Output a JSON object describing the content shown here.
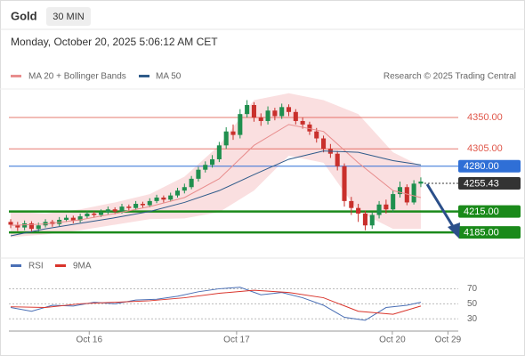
{
  "chart_data": [
    {
      "type": "candlestick",
      "title": "Gold",
      "timeframe": "30 MIN",
      "subtitle": "Monday, October 20, 2025 5:06:12 AM CET",
      "source": "Research © 2025 Trading Central",
      "open": [
        4200,
        4196,
        4192,
        4198,
        4190,
        4195,
        4200,
        4197,
        4203,
        4206,
        4202,
        4208,
        4212,
        4210,
        4214,
        4218,
        4215,
        4222,
        4220,
        4226,
        4224,
        4230,
        4235,
        4232,
        4238,
        4245,
        4250,
        4262,
        4275,
        4282,
        4290,
        4310,
        4330,
        4325,
        4355,
        4368,
        4350,
        4345,
        4360,
        4352,
        4365,
        4358,
        4345,
        4340,
        4330,
        4320,
        4305,
        4298,
        4280,
        4230,
        4220,
        4212,
        4195,
        4210,
        4225,
        4218,
        4240,
        4250,
        4228,
        4255
      ],
      "high": [
        4204,
        4200,
        4202,
        4201,
        4199,
        4204,
        4203,
        4207,
        4210,
        4209,
        4212,
        4216,
        4215,
        4218,
        4222,
        4221,
        4226,
        4225,
        4230,
        4229,
        4234,
        4239,
        4238,
        4242,
        4249,
        4255,
        4266,
        4279,
        4287,
        4296,
        4315,
        4336,
        4340,
        4362,
        4375,
        4372,
        4356,
        4366,
        4364,
        4370,
        4369,
        4362,
        4350,
        4344,
        4335,
        4324,
        4312,
        4302,
        4284,
        4236,
        4226,
        4216,
        4214,
        4230,
        4232,
        4245,
        4258,
        4254,
        4260,
        4264
      ],
      "low": [
        4191,
        4187,
        4188,
        4185,
        4186,
        4192,
        4193,
        4194,
        4200,
        4198,
        4199,
        4205,
        4206,
        4207,
        4211,
        4211,
        4212,
        4216,
        4217,
        4220,
        4221,
        4227,
        4228,
        4229,
        4235,
        4241,
        4247,
        4258,
        4271,
        4278,
        4286,
        4305,
        4318,
        4320,
        4350,
        4344,
        4338,
        4340,
        4346,
        4348,
        4352,
        4340,
        4334,
        4325,
        4314,
        4300,
        4292,
        4274,
        4222,
        4210,
        4200,
        4188,
        4190,
        4205,
        4212,
        4214,
        4235,
        4224,
        4225,
        4250
      ],
      "close": [
        4196,
        4192,
        4198,
        4190,
        4195,
        4200,
        4197,
        4203,
        4206,
        4202,
        4208,
        4212,
        4210,
        4214,
        4218,
        4215,
        4222,
        4220,
        4226,
        4224,
        4230,
        4235,
        4232,
        4238,
        4245,
        4250,
        4262,
        4275,
        4282,
        4290,
        4310,
        4330,
        4325,
        4355,
        4368,
        4350,
        4345,
        4360,
        4352,
        4365,
        4358,
        4345,
        4340,
        4330,
        4320,
        4305,
        4298,
        4280,
        4230,
        4220,
        4212,
        4195,
        4210,
        4225,
        4218,
        4240,
        4250,
        4228,
        4255,
        4258
      ],
      "up_color": "#1f8f4e",
      "down_color": "#c9302c",
      "overlays": [
        {
          "name": "MA 20 + Bollinger Bands",
          "color": "#e88d8d",
          "band_color": "#f7c9cc",
          "x": [
            0,
            5,
            10,
            15,
            20,
            25,
            30,
            35,
            40,
            45,
            50,
            55,
            59
          ],
          "values": [
            4195,
            4197,
            4203,
            4212,
            4222,
            4235,
            4262,
            4310,
            4340,
            4330,
            4285,
            4245,
            4235
          ],
          "upper": [
            4215,
            4212,
            4218,
            4228,
            4240,
            4265,
            4310,
            4375,
            4385,
            4375,
            4355,
            4300,
            4280
          ],
          "lower": [
            4178,
            4182,
            4188,
            4196,
            4204,
            4205,
            4214,
            4245,
            4295,
            4285,
            4215,
            4190,
            4190
          ]
        },
        {
          "name": "MA 50",
          "color": "#2f5b8a",
          "x": [
            0,
            5,
            10,
            15,
            20,
            25,
            30,
            35,
            40,
            45,
            50,
            55,
            59
          ],
          "values": [
            4180,
            4190,
            4198,
            4206,
            4215,
            4228,
            4245,
            4268,
            4290,
            4302,
            4300,
            4288,
            4282
          ]
        }
      ],
      "levels": [
        {
          "value": 4350,
          "label": "4350.00",
          "color": "#e0574a",
          "kind": "text",
          "line": "solid"
        },
        {
          "value": 4305,
          "label": "4305.00",
          "color": "#e0574a",
          "kind": "text",
          "line": "solid"
        },
        {
          "value": 4280,
          "label": "4280.00",
          "color": "#2f6fd6",
          "kind": "box",
          "line": "solid"
        },
        {
          "value": 4255.43,
          "label": "4255.43",
          "color": "#333333",
          "kind": "box",
          "line": "dotted"
        },
        {
          "value": 4215,
          "label": "4215.00",
          "color": "#1a8a1a",
          "kind": "box",
          "line": "thick"
        },
        {
          "value": 4185,
          "label": "4185.00",
          "color": "#1a8a1a",
          "kind": "box",
          "line": "thick"
        }
      ],
      "xlim": [
        0,
        64
      ],
      "ylim": [
        4148,
        4391
      ]
    },
    {
      "type": "line",
      "series": [
        {
          "name": "RSI",
          "color": "#4a6fb5",
          "x": [
            0,
            3,
            6,
            9,
            12,
            15,
            18,
            21,
            24,
            27,
            30,
            33,
            36,
            39,
            42,
            45,
            48,
            51,
            54,
            57,
            59
          ],
          "values": [
            45,
            40,
            48,
            47,
            52,
            50,
            55,
            56,
            60,
            66,
            70,
            72,
            62,
            65,
            58,
            48,
            32,
            28,
            45,
            48,
            52
          ]
        },
        {
          "name": "9MA",
          "color": "#d9342b",
          "x": [
            0,
            5,
            10,
            15,
            20,
            25,
            30,
            35,
            40,
            45,
            50,
            55,
            59
          ],
          "values": [
            46,
            45,
            50,
            52,
            54,
            58,
            64,
            68,
            65,
            58,
            40,
            36,
            47
          ]
        }
      ],
      "xlim": [
        0,
        64
      ],
      "ylim": [
        16,
        80
      ],
      "yticks": [
        30,
        50,
        70
      ],
      "grid": true,
      "xticks": [
        {
          "value": 11.3,
          "label": "Oct 16"
        },
        {
          "value": 32.5,
          "label": "Oct 17"
        },
        {
          "value": 54.9,
          "label": "Oct 20"
        },
        {
          "value": 62.9,
          "label": "Oct 29"
        }
      ]
    }
  ]
}
